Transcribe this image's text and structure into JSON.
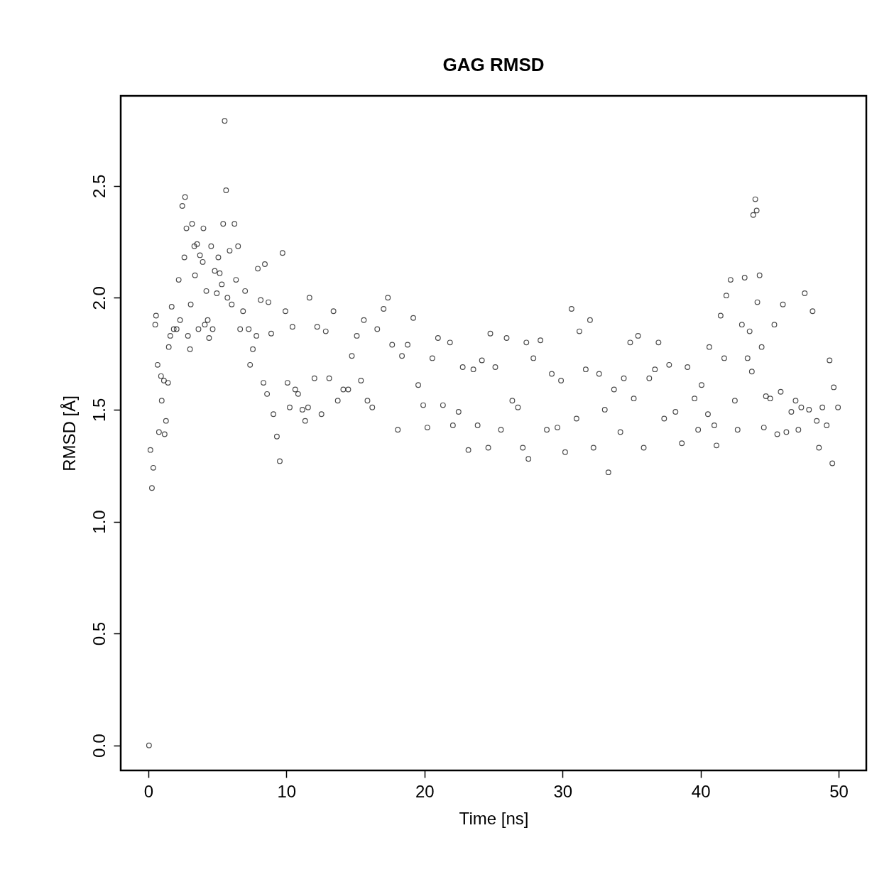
{
  "chart_data": {
    "type": "scatter",
    "title": "GAG RMSD",
    "xlabel": "Time [ns]",
    "ylabel": "RMSD [Å]",
    "xlim": [
      -2,
      52
    ],
    "ylim": [
      -0.112,
      2.902
    ],
    "xticks": [
      0,
      10,
      20,
      30,
      40,
      50
    ],
    "yticks": [
      {
        "value": 0,
        "label": "0.0"
      },
      {
        "value": 0.5,
        "label": "0.5"
      },
      {
        "value": 1,
        "label": "1.0"
      },
      {
        "value": 1.5,
        "label": "1.5"
      },
      {
        "value": 2,
        "label": "2.0"
      },
      {
        "value": 2.5,
        "label": "2.5"
      }
    ],
    "marker": "circle",
    "grid": false,
    "series": [
      {
        "color": "#000000",
        "x": [
          0.05,
          0.15,
          0.26,
          0.36,
          0.5,
          0.56,
          0.67,
          0.77,
          0.92,
          0.97,
          1.13,
          1.18,
          1.28,
          1.43,
          1.48,
          1.59,
          1.69,
          1.84,
          2.05,
          2.2,
          2.3,
          2.46,
          2.66,
          2.61,
          2.76,
          2.87,
          3.02,
          3.07,
          3.17,
          3.33,
          3.38,
          3.53,
          3.63,
          3.74,
          3.94,
          3.99,
          4.09,
          4.2,
          4.3,
          4.4,
          4.55,
          4.66,
          4.81,
          4.96,
          5.07,
          5.17,
          5.32,
          5.42,
          5.53,
          5.63,
          5.73,
          5.89,
          6.04,
          6.24,
          6.35,
          6.5,
          6.65,
          6.86,
          7.01,
          7.27,
          7.37,
          7.57,
          7.83,
          7.93,
          8.14,
          8.34,
          8.44,
          8.6,
          8.7,
          8.9,
          9.06,
          9.31,
          9.52,
          9.72,
          9.93,
          10.08,
          10.24,
          10.44,
          10.64,
          10.85,
          11.16,
          11.36,
          11.57,
          11.67,
          12.03,
          12.23,
          12.54,
          12.85,
          13.1,
          13.41,
          13.72,
          14.12,
          14.48,
          14.74,
          15.1,
          15.4,
          15.61,
          15.87,
          16.22,
          16.58,
          17.04,
          17.35,
          17.66,
          18.07,
          18.37,
          18.78,
          19.19,
          19.55,
          19.91,
          20.21,
          20.57,
          20.98,
          21.34,
          21.85,
          22.06,
          22.47,
          22.77,
          23.18,
          23.54,
          23.85,
          24.16,
          24.62,
          24.77,
          25.13,
          25.54,
          25.95,
          26.36,
          26.77,
          27.12,
          27.38,
          27.53,
          27.89,
          28.4,
          28.86,
          29.22,
          29.63,
          29.89,
          30.19,
          30.65,
          31.01,
          31.22,
          31.68,
          31.99,
          32.24,
          32.65,
          33.06,
          33.32,
          33.73,
          34.19,
          34.44,
          34.9,
          35.16,
          35.47,
          35.88,
          36.28,
          36.69,
          36.95,
          37.36,
          37.72,
          38.18,
          38.64,
          39.05,
          39.56,
          39.82,
          40.07,
          40.53,
          40.63,
          40.99,
          41.15,
          41.45,
          41.71,
          41.86,
          42.17,
          42.48,
          42.68,
          42.99,
          43.19,
          43.4,
          43.55,
          43.71,
          43.81,
          43.96,
          44.06,
          44.11,
          44.27,
          44.42,
          44.58,
          44.73,
          45.04,
          45.34,
          45.55,
          45.8,
          45.96,
          46.21,
          46.57,
          46.88,
          47.08,
          47.29,
          47.54,
          47.85,
          48.11,
          48.41,
          48.57,
          48.82,
          49.13,
          49.34,
          49.54,
          49.64,
          49.95
        ],
        "values": [
          0.0,
          1.32,
          1.15,
          1.24,
          1.88,
          1.92,
          1.7,
          1.4,
          1.65,
          1.54,
          1.63,
          1.39,
          1.45,
          1.62,
          1.78,
          1.83,
          1.96,
          1.86,
          1.86,
          2.08,
          1.9,
          2.41,
          2.45,
          2.18,
          2.31,
          1.83,
          1.77,
          1.97,
          2.33,
          2.23,
          2.1,
          2.24,
          1.86,
          2.19,
          2.16,
          2.31,
          1.88,
          2.03,
          1.9,
          1.82,
          2.23,
          1.86,
          2.12,
          2.02,
          2.18,
          2.11,
          2.06,
          2.33,
          2.79,
          2.48,
          2.0,
          2.21,
          1.97,
          2.33,
          2.08,
          2.23,
          1.86,
          1.94,
          2.03,
          1.86,
          1.7,
          1.77,
          1.83,
          2.13,
          1.99,
          1.62,
          2.15,
          1.57,
          1.98,
          1.84,
          1.48,
          1.38,
          1.27,
          2.2,
          1.94,
          1.62,
          1.51,
          1.87,
          1.59,
          1.57,
          1.5,
          1.45,
          1.51,
          2.0,
          1.64,
          1.87,
          1.48,
          1.85,
          1.64,
          1.94,
          1.54,
          1.59,
          1.59,
          1.74,
          1.83,
          1.63,
          1.9,
          1.54,
          1.51,
          1.86,
          1.95,
          2.0,
          1.79,
          1.41,
          1.74,
          1.79,
          1.91,
          1.61,
          1.52,
          1.42,
          1.73,
          1.82,
          1.52,
          1.8,
          1.43,
          1.49,
          1.69,
          1.32,
          1.68,
          1.43,
          1.72,
          1.33,
          1.84,
          1.69,
          1.41,
          1.82,
          1.54,
          1.51,
          1.33,
          1.8,
          1.28,
          1.73,
          1.81,
          1.41,
          1.66,
          1.42,
          1.63,
          1.31,
          1.95,
          1.46,
          1.85,
          1.68,
          1.9,
          1.33,
          1.66,
          1.5,
          1.22,
          1.59,
          1.4,
          1.64,
          1.8,
          1.55,
          1.83,
          1.33,
          1.64,
          1.68,
          1.8,
          1.46,
          1.7,
          1.49,
          1.35,
          1.69,
          1.55,
          1.41,
          1.61,
          1.48,
          1.78,
          1.43,
          1.34,
          1.92,
          1.73,
          2.01,
          2.08,
          1.54,
          1.41,
          1.88,
          2.09,
          1.73,
          1.85,
          1.67,
          2.37,
          2.44,
          2.39,
          1.98,
          2.1,
          1.78,
          1.42,
          1.56,
          1.55,
          1.88,
          1.39,
          1.58,
          1.97,
          1.4,
          1.49,
          1.54,
          1.41,
          1.51,
          2.02,
          1.5,
          1.94,
          1.45,
          1.33,
          1.51,
          1.43,
          1.72,
          1.26,
          1.6,
          1.51
        ]
      }
    ]
  }
}
